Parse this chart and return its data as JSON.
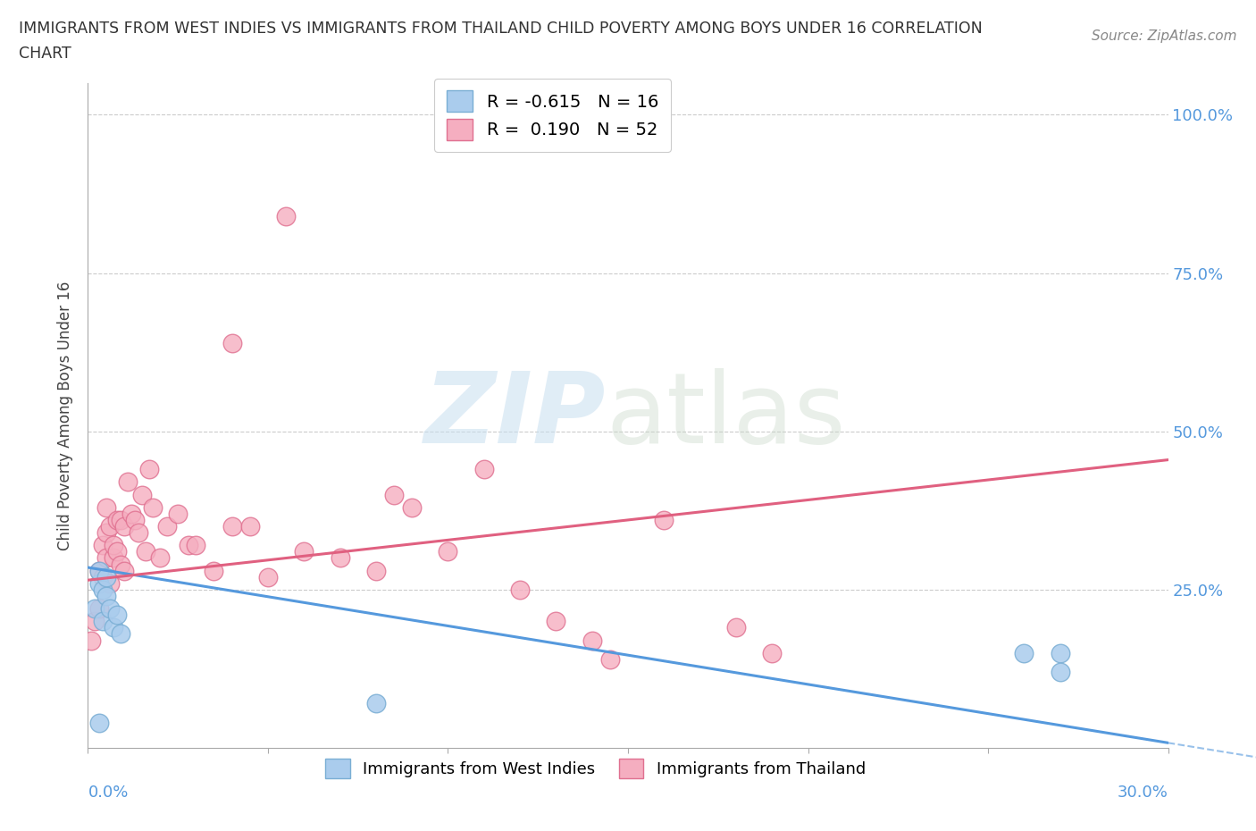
{
  "title_line1": "IMMIGRANTS FROM WEST INDIES VS IMMIGRANTS FROM THAILAND CHILD POVERTY AMONG BOYS UNDER 16 CORRELATION",
  "title_line2": "CHART",
  "source": "Source: ZipAtlas.com",
  "ylabel": "Child Poverty Among Boys Under 16",
  "yticks": [
    0.0,
    0.25,
    0.5,
    0.75,
    1.0
  ],
  "ytick_labels": [
    "",
    "25.0%",
    "50.0%",
    "75.0%",
    "100.0%"
  ],
  "xlim": [
    0.0,
    0.3
  ],
  "ylim": [
    0.0,
    1.05
  ],
  "west_indies_color": "#aacced",
  "west_indies_edge": "#7aaed4",
  "thailand_color": "#f5aec0",
  "thailand_edge": "#e07090",
  "west_indies_line_color": "#5599dd",
  "thailand_line_color": "#e06080",
  "legend_R_west": "-0.615",
  "legend_N_west": "16",
  "legend_R_thai": "0.190",
  "legend_N_thai": "52",
  "west_line_x0": 0.0,
  "west_line_y0": 0.285,
  "west_line_x1": 0.3,
  "west_line_y1": 0.008,
  "thai_line_x0": 0.0,
  "thai_line_y0": 0.265,
  "thai_line_x1": 0.3,
  "thai_line_y1": 0.455,
  "west_indies_x": [
    0.002,
    0.003,
    0.003,
    0.004,
    0.004,
    0.005,
    0.005,
    0.006,
    0.007,
    0.008,
    0.009,
    0.26,
    0.27,
    0.27,
    0.08,
    0.003
  ],
  "west_indies_y": [
    0.22,
    0.26,
    0.28,
    0.25,
    0.2,
    0.24,
    0.27,
    0.22,
    0.19,
    0.21,
    0.18,
    0.15,
    0.15,
    0.12,
    0.07,
    0.04
  ],
  "thailand_x": [
    0.001,
    0.002,
    0.003,
    0.003,
    0.004,
    0.004,
    0.005,
    0.005,
    0.005,
    0.006,
    0.006,
    0.007,
    0.007,
    0.008,
    0.008,
    0.009,
    0.009,
    0.01,
    0.01,
    0.011,
    0.012,
    0.013,
    0.014,
    0.015,
    0.016,
    0.017,
    0.018,
    0.02,
    0.022,
    0.025,
    0.028,
    0.03,
    0.035,
    0.04,
    0.04,
    0.045,
    0.05,
    0.06,
    0.07,
    0.08,
    0.09,
    0.1,
    0.11,
    0.12,
    0.14,
    0.16,
    0.18,
    0.055,
    0.13,
    0.085,
    0.19,
    0.145
  ],
  "thailand_y": [
    0.17,
    0.2,
    0.22,
    0.28,
    0.27,
    0.32,
    0.3,
    0.34,
    0.38,
    0.26,
    0.35,
    0.3,
    0.32,
    0.31,
    0.36,
    0.29,
    0.36,
    0.28,
    0.35,
    0.42,
    0.37,
    0.36,
    0.34,
    0.4,
    0.31,
    0.44,
    0.38,
    0.3,
    0.35,
    0.37,
    0.32,
    0.32,
    0.28,
    0.35,
    0.64,
    0.35,
    0.27,
    0.31,
    0.3,
    0.28,
    0.38,
    0.31,
    0.44,
    0.25,
    0.17,
    0.36,
    0.19,
    0.84,
    0.2,
    0.4,
    0.15,
    0.14
  ]
}
